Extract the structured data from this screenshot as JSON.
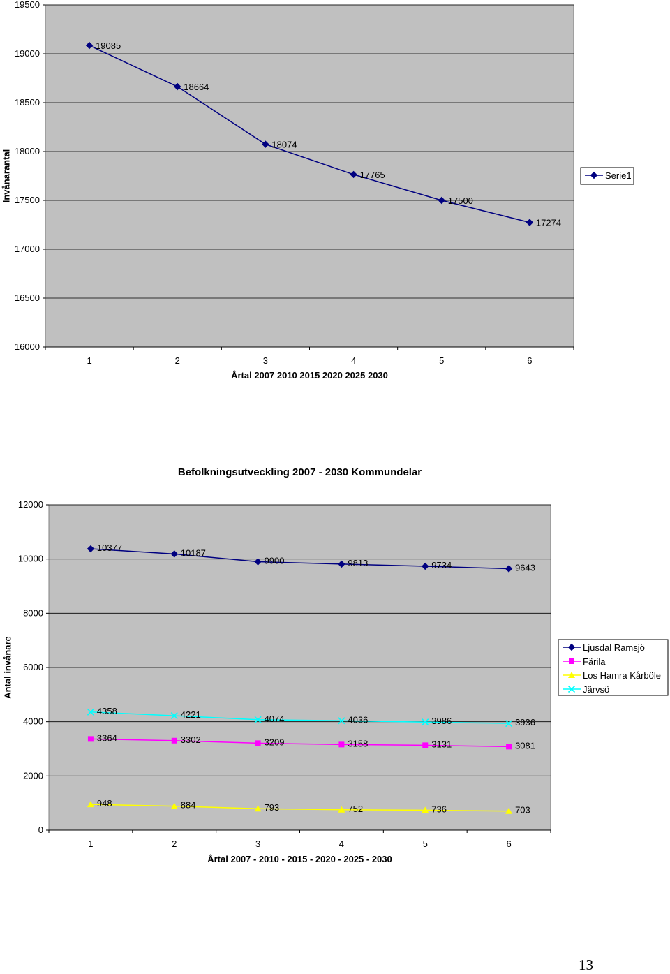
{
  "page_number": "13",
  "chart_data": [
    {
      "type": "line",
      "title": "",
      "xlabel": "Årtal 2007 2010 2015 2020 2025 2030",
      "ylabel": "Invånarantal",
      "categories": [
        "1",
        "2",
        "3",
        "4",
        "5",
        "6"
      ],
      "ylim": [
        16000,
        19500
      ],
      "yticks": [
        16000,
        16500,
        17000,
        17500,
        18000,
        18500,
        19000,
        19500
      ],
      "grid": true,
      "legend": "right",
      "series": [
        {
          "name": "Serie1",
          "values": [
            19085,
            18664,
            18074,
            17765,
            17500,
            17274
          ],
          "color": "#000080",
          "marker": "diamond"
        }
      ]
    },
    {
      "type": "line",
      "title": "Befolkningsutveckling 2007 - 2030 Kommundelar",
      "xlabel": "Årtal 2007 - 2010 - 2015 - 2020 - 2025 - 2030",
      "ylabel": "Antal invånare",
      "categories": [
        "1",
        "2",
        "3",
        "4",
        "5",
        "6"
      ],
      "ylim": [
        0,
        12000
      ],
      "yticks": [
        0,
        2000,
        4000,
        6000,
        8000,
        10000,
        12000
      ],
      "grid": true,
      "legend": "right",
      "series": [
        {
          "name": "Ljusdal Ramsjö",
          "values": [
            10377,
            10187,
            9900,
            9813,
            9734,
            9643
          ],
          "color": "#000080",
          "marker": "diamond"
        },
        {
          "name": "Färila",
          "values": [
            3364,
            3302,
            3209,
            3158,
            3131,
            3081
          ],
          "color": "#ff00ff",
          "marker": "square"
        },
        {
          "name": "Los Hamra Kårböle",
          "values": [
            948,
            884,
            793,
            752,
            736,
            703
          ],
          "color": "#ffff00",
          "marker": "triangle"
        },
        {
          "name": "Järvsö",
          "values": [
            4358,
            4221,
            4074,
            4036,
            3986,
            3936
          ],
          "color": "#00ffff",
          "marker": "x"
        }
      ]
    }
  ]
}
